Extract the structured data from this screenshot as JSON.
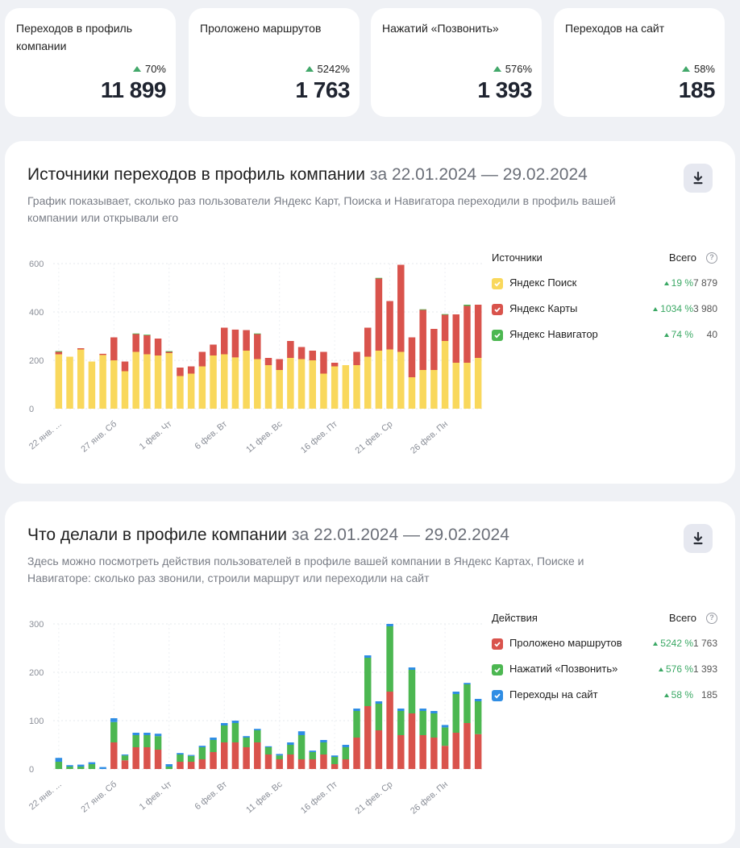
{
  "kpis": [
    {
      "label": "Переходов в профиль компании",
      "delta": "70%",
      "value": "11 899"
    },
    {
      "label": "Проложено маршрутов",
      "delta": "5242%",
      "value": "1 763"
    },
    {
      "label": "Нажатий «Позвонить»",
      "delta": "576%",
      "value": "1 393"
    },
    {
      "label": "Переходов на сайт",
      "delta": "58%",
      "value": "185"
    }
  ],
  "sources_card": {
    "title": "Источники переходов в профиль компании",
    "period": "за 22.01.2024 — 29.02.2024",
    "description": "График показывает, сколько раз пользователи Яндекс Карт, Поиска и Навигатора переходили в профиль вашей компании или открывали его",
    "legend": {
      "header_left": "Источники",
      "header_right": "Всего",
      "help_icon": "?",
      "items": [
        {
          "label": "Яндекс Поиск",
          "pct": "19 %",
          "total": "7 879",
          "color": "#f9d85c"
        },
        {
          "label": "Яндекс Карты",
          "pct": "1034 %",
          "total": "3 980",
          "color": "#d9534c"
        },
        {
          "label": "Яндекс Навигатор",
          "pct": "74 %",
          "total": "40",
          "color": "#4cb751"
        }
      ]
    }
  },
  "actions_card": {
    "title": "Что делали в профиле компании",
    "period": "за 22.01.2024 — 29.02.2024",
    "description": "Здесь можно посмотреть действия пользователей в профиле вашей компании в Яндекс Картах, Поиске и Навигаторе: сколько раз звонили, строили маршрут или переходили на сайт",
    "legend": {
      "header_left": "Действия",
      "header_right": "Всего",
      "help_icon": "?",
      "items": [
        {
          "label": "Проложено маршрутов",
          "pct": "5242 %",
          "total": "1 763",
          "color": "#d9534c"
        },
        {
          "label": "Нажатий «Позвонить»",
          "pct": "576 %",
          "total": "1 393",
          "color": "#4cb751"
        },
        {
          "label": "Переходы на сайт",
          "pct": "58 %",
          "total": "185",
          "color": "#2f8de4"
        }
      ]
    }
  },
  "chart_data": [
    {
      "type": "bar",
      "stacked": true,
      "x_tick_labels": [
        "22 янв. ...",
        "27 янв. Сб",
        "1 фев. Чт",
        "6 фев. Вт",
        "11 фев. Вс",
        "16 фев. Пт",
        "21 фев. Ср",
        "26 фев. Пн"
      ],
      "x_tick_every": 5,
      "ylim": [
        0,
        600
      ],
      "y_ticks": [
        0,
        200,
        400,
        600
      ],
      "grid": true,
      "series": [
        {
          "name": "Яндекс Поиск",
          "color": "#f9d85c",
          "values": [
            225,
            215,
            245,
            195,
            222,
            200,
            155,
            235,
            225,
            220,
            230,
            135,
            145,
            175,
            220,
            225,
            212,
            240,
            205,
            180,
            160,
            210,
            205,
            200,
            145,
            175,
            180,
            180,
            215,
            240,
            245,
            235,
            130,
            160,
            160,
            280,
            190,
            190,
            210
          ]
        },
        {
          "name": "Яндекс Карты",
          "color": "#d9534c",
          "values": [
            10,
            0,
            5,
            0,
            5,
            95,
            40,
            75,
            80,
            70,
            5,
            35,
            30,
            60,
            45,
            110,
            115,
            85,
            105,
            30,
            45,
            70,
            50,
            40,
            90,
            15,
            0,
            55,
            120,
            300,
            200,
            360,
            165,
            250,
            170,
            110,
            200,
            235,
            220
          ]
        },
        {
          "name": "Яндекс Навигатор",
          "color": "#4cb751",
          "values": [
            3,
            0,
            0,
            0,
            0,
            0,
            0,
            1,
            1,
            0,
            3,
            0,
            0,
            0,
            0,
            0,
            0,
            0,
            1,
            0,
            0,
            0,
            0,
            0,
            0,
            0,
            0,
            0,
            0,
            1,
            0,
            0,
            0,
            1,
            0,
            1,
            0,
            5,
            0
          ]
        }
      ]
    },
    {
      "type": "bar",
      "stacked": true,
      "x_tick_labels": [
        "22 янв. ...",
        "27 янв. Сб",
        "1 фев. Чт",
        "6 фев. Вт",
        "11 фев. Вс",
        "16 фев. Пт",
        "21 фев. Ср",
        "26 фев. Пн"
      ],
      "x_tick_every": 5,
      "ylim": [
        0,
        300
      ],
      "y_ticks": [
        0,
        100,
        200,
        300
      ],
      "grid": true,
      "series": [
        {
          "name": "Проложено маршрутов",
          "color": "#d9534c",
          "values": [
            0,
            0,
            0,
            0,
            0,
            55,
            18,
            45,
            45,
            40,
            0,
            15,
            15,
            20,
            35,
            55,
            55,
            45,
            55,
            30,
            20,
            30,
            20,
            20,
            30,
            10,
            20,
            65,
            130,
            80,
            160,
            70,
            115,
            70,
            65,
            48,
            75,
            95,
            72
          ]
        },
        {
          "name": "Нажатий «Позвонить»",
          "color": "#4cb751",
          "values": [
            15,
            5,
            5,
            10,
            0,
            42,
            10,
            25,
            25,
            28,
            5,
            15,
            12,
            25,
            25,
            35,
            40,
            20,
            25,
            15,
            8,
            20,
            50,
            15,
            25,
            15,
            25,
            55,
            100,
            55,
            135,
            50,
            90,
            50,
            50,
            38,
            80,
            80,
            68
          ]
        },
        {
          "name": "Переходы на сайт",
          "color": "#2f8de4",
          "values": [
            8,
            3,
            4,
            4,
            4,
            8,
            2,
            5,
            5,
            5,
            5,
            3,
            2,
            3,
            5,
            5,
            5,
            3,
            3,
            2,
            3,
            5,
            8,
            3,
            5,
            3,
            5,
            5,
            5,
            5,
            5,
            5,
            5,
            5,
            5,
            5,
            5,
            3,
            5
          ]
        }
      ]
    }
  ]
}
